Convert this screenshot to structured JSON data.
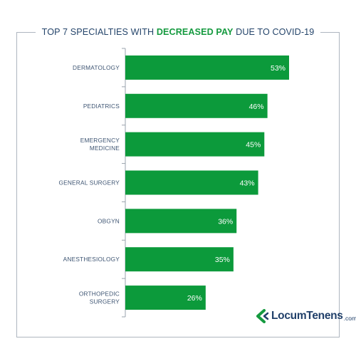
{
  "title": {
    "prefix": "TOP 7 SPECIALTIES WITH",
    "highlight": "DECREASED PAY",
    "suffix": "DUE TO COVID-19"
  },
  "colors": {
    "bar": "#0c9a3b",
    "title_text": "#25456b",
    "highlight": "#159a3f",
    "axis": "#9aa3ad",
    "frame": "#aeb6bf"
  },
  "logo": {
    "name": "LocumTenens",
    "suffix": ".com"
  },
  "chart_data": {
    "type": "bar",
    "orientation": "horizontal",
    "title": "TOP 7 SPECIALTIES WITH DECREASED PAY DUE TO COVID-19",
    "categories": [
      [
        "DERMATOLOGY"
      ],
      [
        "PEDIATRICS"
      ],
      [
        "EMERGENCY",
        "MEDICINE"
      ],
      [
        "GENERAL SURGERY"
      ],
      [
        "OBGYN"
      ],
      [
        "ANESTHESIOLOGY"
      ],
      [
        "ORTHOPEDIC",
        "SURGERY"
      ]
    ],
    "values": [
      53,
      46,
      45,
      43,
      36,
      35,
      26
    ],
    "value_labels": [
      "53%",
      "46%",
      "45%",
      "43%",
      "36%",
      "35%",
      "26%"
    ],
    "xlim": [
      0,
      60
    ],
    "grid": false,
    "legend": "none"
  }
}
